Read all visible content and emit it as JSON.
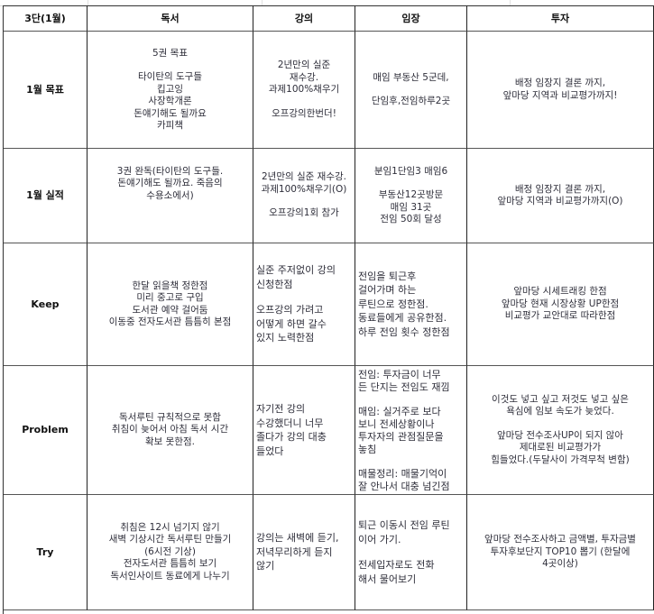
{
  "headers": [
    "3단(1월)",
    "독서",
    "강의",
    "임장",
    "투자"
  ],
  "rows": [
    {
      "label": "1월 목표",
      "cells": [
        [
          "5권 목표",
          "",
          "타이탄의 도구들",
          "킵고잉",
          "사장학개론",
          "돈얘기해도 될까요",
          "카피책"
        ],
        [
          "2년만의 실준",
          "재수강.",
          "과제100%채우기",
          "",
          "오프강의한번더!"
        ],
        [
          "매임 부동산 5군데,",
          "",
          "단임후,전임하루2곳"
        ],
        [
          "배정 임장지 결론 까지,",
          "앞마당 지역과 비교평가까지!"
        ]
      ]
    },
    {
      "label": "1월 실적",
      "cells": [
        [
          "3권 완독(타이탄의 도구들.",
          "돈얘기해도 될까요. 죽음의",
          "수용소에서)",
          "",
          ""
        ],
        [
          "2년만의 실준 재수강.",
          "과제100%채우기(O)",
          "",
          "오프강의1회 참가"
        ],
        [
          "분임1단임3 매임6",
          "",
          "부동산12곳방문",
          "매임 31곳",
          "전임 50회 달성"
        ],
        [
          "배정 임장지 결론 까지,",
          "앞마당 지역과 비교평가까지(O)"
        ]
      ]
    },
    {
      "label": "Keep",
      "cells": [
        [
          "한달 읽을책 정한점",
          "미리 중고로 구입",
          "도서관 예약 걸어둠",
          "이동중 전자도서관 틈틈히 본점"
        ],
        [
          "실준 주저없이 강의",
          "신청한점",
          "",
          "오프강의 가려고",
          "어떻게 하면 갈수",
          "있지 노력한점"
        ],
        [
          "전임을 퇴근후",
          "걸어가며 하는",
          "루틴으로 정한점.",
          "동료들에게 공유한점.",
          "하루 전임 횟수 정한점"
        ],
        [
          "앞마당 시세트래킹 한점",
          "앞마당 현재 시장상황 UP한점",
          "비교평가 교안대로 따라한점"
        ]
      ]
    },
    {
      "label": "Problem",
      "cells": [
        [
          "독서루틴 규칙적으로 못함",
          "취침이 늦어서 아침 독서 시간",
          "확보 못한점."
        ],
        [
          "자기전 강의",
          "수강했더니 너무",
          "졸다가 강의 대충",
          "들었다"
        ],
        [
          "전임: 투자금이 너무",
          "든 단지는 전임도 재낌",
          "",
          "매임: 실거주로 보다",
          "보니 전세상황이나",
          "투자자의 관점질문을",
          "놓침",
          "",
          "매물정리: 매물기억이",
          "잘 안나서 대충 넘긴점"
        ],
        [
          "이것도 넣고 싶고 저것도 넣고 싶은",
          "욕심에 임보 속도가 늦었다.",
          "",
          "앞마당 전수조사UP이 되지 않아",
          "제대로된 비교평가가",
          "힘들었다.(두달사이 가격무척 변함)"
        ]
      ]
    },
    {
      "label": "Try",
      "cells": [
        [
          "취침은 12시 넘기지 않기",
          "새벽 기상시간 독서루틴 만들기",
          "(6시전 기상)",
          "전자도서관 틈틈히 보기",
          "독서인사이트 동료에게 나누기"
        ],
        [
          "강의는 새벽에 듣기,",
          "저녁무리하게 듣지",
          "않기"
        ],
        [
          "퇴근 이동시 전임 루틴",
          "이어 가기.",
          "",
          "전세입자로도 전화",
          "해서 물어보기"
        ],
        [
          "앞마당 전수조사하고 금액별, 투자금별",
          "투자후보단지 TOP10 뽑기 (한달에",
          "4곳이상)"
        ]
      ]
    }
  ]
}
